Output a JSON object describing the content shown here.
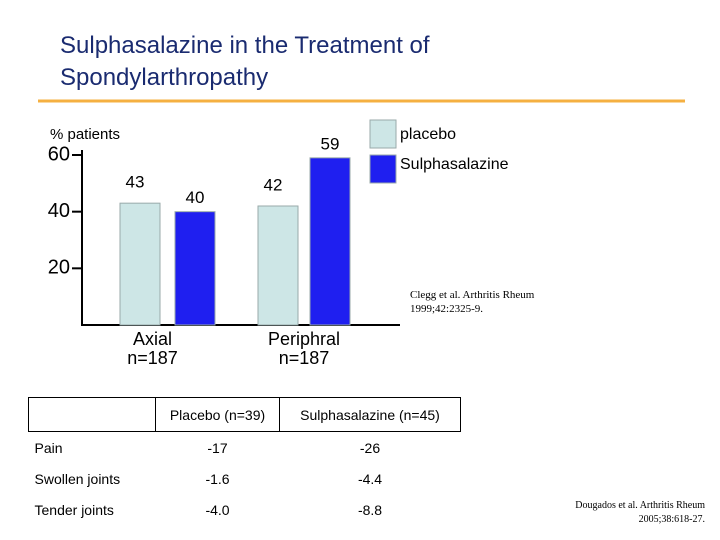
{
  "chart_data": {
    "type": "bar",
    "title": "Sulphasalazine in the Treatment of Spondylarthropathy",
    "y_label": "% patients",
    "categories": [
      "Axial n=187",
      "Periphral n=187"
    ],
    "series": [
      {
        "name": "placebo",
        "color": "#cde6e6",
        "values": [
          43,
          42
        ]
      },
      {
        "name": "Sulphasalazine",
        "color": "#1f1ff0",
        "values": [
          40,
          59
        ]
      }
    ],
    "ylim": [
      0,
      60
    ],
    "yticks": [
      20,
      40,
      60
    ],
    "legend": "top-right",
    "annotation": "Clegg et al. Arthritis Rheum 1999;42:2325-9."
  },
  "table": {
    "header": [
      "Placebo (n=39)",
      "Sulphasalazine (n=45)"
    ],
    "rows": [
      [
        "Pain",
        "-17",
        "-26"
      ],
      [
        "Swollen joints",
        "-1.6",
        "-4.4"
      ],
      [
        "Tender joints",
        "-4.0",
        "-8.8"
      ]
    ],
    "citation": "Dougados et al. Arthritis Rheum 2005;38:618-27."
  }
}
